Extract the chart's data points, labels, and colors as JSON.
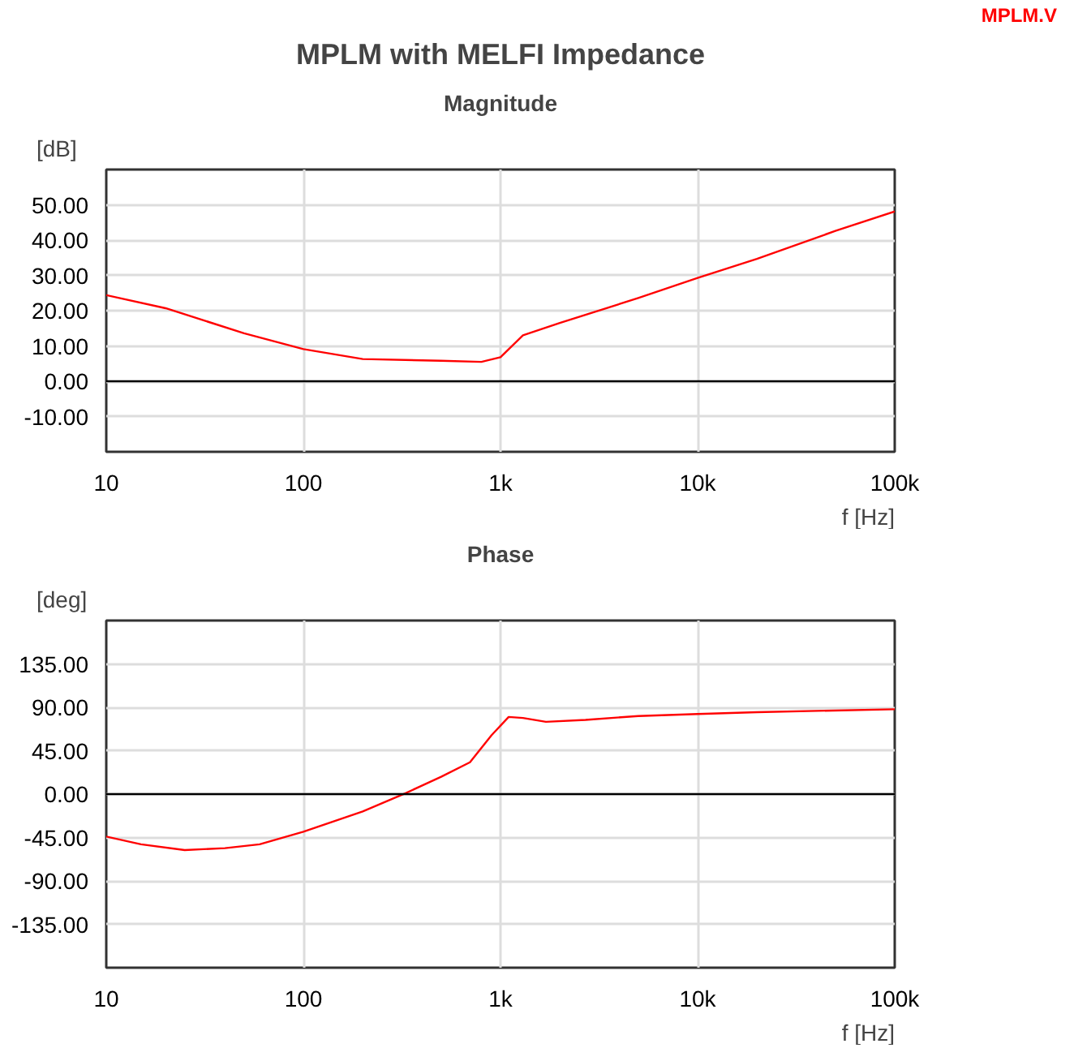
{
  "chart_data": [
    {
      "type": "line",
      "title": "MPLM with MELFI Impedance",
      "subtitle": "Magnitude",
      "xlabel": "f [Hz]",
      "ylabel": "[dB]",
      "log": "x",
      "grid": true,
      "x": [
        10,
        20,
        50,
        100,
        200,
        500,
        800,
        1000,
        1300,
        2000,
        5000,
        10000,
        20000,
        50000,
        100000
      ],
      "series": [
        {
          "color": "#ff0000",
          "values": [
            24.4,
            20.7,
            13.6,
            9.1,
            6.3,
            5.8,
            5.5,
            6.8,
            13,
            16.5,
            23.6,
            29.3,
            34.7,
            42.6,
            48.1
          ]
        }
      ],
      "xlim": [
        10,
        100000
      ],
      "ylim": [
        -20,
        60
      ],
      "xticks": [
        10,
        100,
        {
          "value": 1000,
          "label": "1k"
        },
        {
          "value": 10000,
          "label": "10k"
        },
        {
          "value": 100000,
          "label": "100k"
        }
      ],
      "yticks": [
        {
          "value": -10,
          "label": "-10.00"
        },
        {
          "value": 0,
          "label": "0.00"
        },
        {
          "value": 10,
          "label": "10.00"
        },
        {
          "value": 20,
          "label": "20.00"
        },
        {
          "value": 30,
          "label": "30.00"
        },
        {
          "value": 40,
          "label": "40.00"
        },
        {
          "value": 50,
          "label": "50.00"
        }
      ],
      "ref_lines": [
        {
          "axis": "y",
          "value": 0,
          "color": "#000000"
        }
      ],
      "annotations": [
        "MPLM.V"
      ]
    },
    {
      "type": "line",
      "title": "Phase",
      "xlabel": "f [Hz]",
      "ylabel": "[deg]",
      "log": "x",
      "grid": true,
      "x": [
        10,
        15,
        25,
        40,
        60,
        100,
        200,
        330,
        500,
        700,
        900,
        1100,
        1300,
        1700,
        2700,
        5000,
        10000,
        20000,
        100000
      ],
      "series": [
        {
          "color": "#ff0000",
          "values": [
            -44,
            -52,
            -58,
            -56,
            -52,
            -39,
            -18,
            1,
            18,
            33,
            61,
            80,
            79,
            75,
            77,
            81,
            83,
            85,
            88
          ]
        }
      ],
      "xlim": [
        10,
        100000
      ],
      "ylim": [
        -180,
        180
      ],
      "xticks": [
        10,
        100,
        {
          "value": 1000,
          "label": "1k"
        },
        {
          "value": 10000,
          "label": "10k"
        },
        {
          "value": 100000,
          "label": "100k"
        }
      ],
      "yticks": [
        {
          "value": -135,
          "label": "-135.00"
        },
        {
          "value": -90,
          "label": "-90.00"
        },
        {
          "value": -45,
          "label": "-45.00"
        },
        {
          "value": 0,
          "label": "0.00"
        },
        {
          "value": 45,
          "label": "45.00"
        },
        {
          "value": 90,
          "label": "90.00"
        },
        {
          "value": 135,
          "label": "135.00"
        }
      ],
      "ref_lines": [
        {
          "axis": "y",
          "value": 0,
          "color": "#000000"
        }
      ]
    }
  ]
}
